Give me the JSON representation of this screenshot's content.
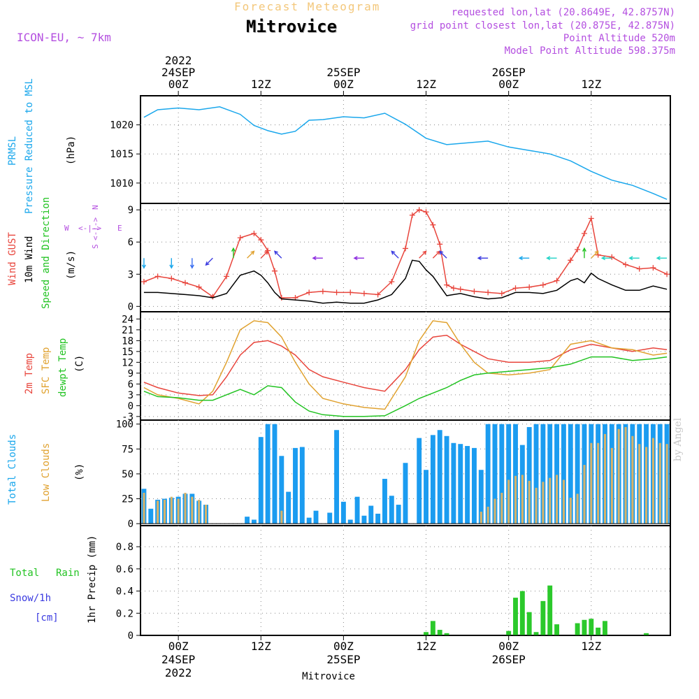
{
  "header": {
    "product": "Forecast Meteogram",
    "station": "Mitrovice",
    "model": "ICON-EU, ~ 7km",
    "requested": "requested lon,lat (20.8649E, 42.8757N)",
    "closest": "grid point closest lon,lat (20.875E, 42.875N)",
    "point_alt": "Point Altitude 520m",
    "model_alt": "Model Point Altitude 598.375m",
    "byline": "by Angel"
  },
  "time_axis": {
    "top": [
      {
        "lines": [
          "2022",
          "24SEP",
          "00Z"
        ],
        "t": 3
      },
      {
        "lines": [
          "12Z"
        ],
        "t": 15
      },
      {
        "lines": [
          "25SEP",
          "00Z"
        ],
        "t": 27
      },
      {
        "lines": [
          "12Z"
        ],
        "t": 39
      },
      {
        "lines": [
          "26SEP",
          "00Z"
        ],
        "t": 51
      },
      {
        "lines": [
          "12Z"
        ],
        "t": 63
      }
    ],
    "bottom": [
      {
        "lines": [
          "00Z",
          "24SEP",
          "2022"
        ],
        "t": 3
      },
      {
        "lines": [
          "12Z"
        ],
        "t": 15
      },
      {
        "lines": [
          "00Z",
          "25SEP"
        ],
        "t": 27
      },
      {
        "lines": [
          "12Z"
        ],
        "t": 39
      },
      {
        "lines": [
          "00Z",
          "26SEP"
        ],
        "t": 51
      },
      {
        "lines": [
          "12Z"
        ],
        "t": 63
      }
    ],
    "footer": "Mitrovice",
    "range_hours": [
      -2.5,
      74.5
    ]
  },
  "labels": {
    "pressure": {
      "left": "PRMSL",
      "mid": "Pressure Reduced to MSL",
      "unit": "(hPa)"
    },
    "wind": {
      "gust": "Wind GUST",
      "wind10": "10m Wind",
      "dir": "Speed and Direction",
      "unit": "(m/s)",
      "compass_n": "N",
      "compass_s": "S",
      "compass_w": "W",
      "compass_e": "E",
      "compass_mid": "<-|->"
    },
    "temp": {
      "t2m": "2m Temp",
      "sfc": "SFC Temp",
      "dew": "dewpt Temp",
      "unit": "(C)"
    },
    "cloud": {
      "total": "Total Clouds",
      "low": "Low Clouds",
      "unit": "(%)"
    },
    "precip": {
      "rain_a": "Total",
      "rain_b": "Rain",
      "snow": "Snow/1h",
      "snow_unit": "[cm]",
      "axis": "1hr Precip (mm)"
    }
  },
  "colors": {
    "pressure": "#1aa7ec",
    "gust": "#e8453c",
    "wind": "#000000",
    "t2m": "#e8453c",
    "sfc": "#e0a230",
    "dew": "#22c322",
    "total_cloud": "#1b9cf0",
    "low_cloud": "#d6b36a",
    "rain": "#2bc92b",
    "label_purple": "#b44fe0",
    "label_blue": "#3a3ae0"
  },
  "chart_data": [
    {
      "type": "line",
      "title": "",
      "ylabel": "Pressure Reduced to MSL (hPa)",
      "ylim": [
        1006.5,
        1025
      ],
      "yticks": [
        1010,
        1015,
        1020
      ],
      "x": [
        -2,
        0,
        3,
        6,
        9,
        12,
        14,
        16,
        18,
        20,
        22,
        24,
        27,
        30,
        33,
        36,
        39,
        42,
        45,
        48,
        51,
        54,
        57,
        60,
        63,
        66,
        69,
        72,
        74
      ],
      "series": [
        {
          "name": "PRMSL",
          "values": [
            1021.3,
            1022.6,
            1022.9,
            1022.6,
            1023.1,
            1021.8,
            1019.9,
            1019.0,
            1018.4,
            1018.9,
            1020.8,
            1020.9,
            1021.4,
            1021.2,
            1022.0,
            1020.1,
            1017.7,
            1016.6,
            1016.9,
            1017.2,
            1016.2,
            1015.6,
            1015.0,
            1013.8,
            1012.0,
            1010.5,
            1009.6,
            1008.2,
            1007.2
          ]
        }
      ]
    },
    {
      "type": "line",
      "title": "",
      "ylabel": "Wind GUST / 10m Wind (m/s)",
      "ylim": [
        -0.5,
        9.6
      ],
      "yticks": [
        0,
        3,
        6,
        9
      ],
      "x": [
        -2,
        0,
        2,
        4,
        6,
        8,
        10,
        12,
        14,
        15,
        16,
        17,
        18,
        20,
        22,
        24,
        26,
        28,
        30,
        32,
        34,
        36,
        37,
        38,
        39,
        40,
        41,
        42,
        43,
        44,
        46,
        48,
        50,
        52,
        54,
        56,
        58,
        60,
        61,
        62,
        63,
        64,
        66,
        68,
        70,
        72,
        74
      ],
      "series": [
        {
          "name": "Wind GUST",
          "values": [
            2.3,
            2.8,
            2.6,
            2.2,
            1.8,
            0.9,
            2.8,
            6.4,
            6.8,
            6.2,
            5.2,
            3.3,
            0.8,
            0.8,
            1.3,
            1.4,
            1.3,
            1.3,
            1.2,
            1.1,
            2.3,
            5.4,
            8.5,
            9.0,
            8.8,
            7.6,
            5.8,
            2.0,
            1.7,
            1.6,
            1.4,
            1.3,
            1.2,
            1.7,
            1.8,
            2.0,
            2.4,
            4.3,
            5.3,
            6.8,
            8.2,
            4.8,
            4.6,
            3.9,
            3.5,
            3.6,
            3.0
          ]
        },
        {
          "name": "10m Wind",
          "values": [
            1.3,
            1.3,
            1.2,
            1.1,
            1.0,
            0.8,
            1.2,
            2.9,
            3.3,
            2.9,
            2.2,
            1.3,
            0.7,
            0.6,
            0.5,
            0.3,
            0.4,
            0.3,
            0.3,
            0.6,
            1.1,
            2.6,
            4.3,
            4.2,
            3.4,
            2.8,
            1.9,
            1.0,
            1.1,
            1.2,
            0.9,
            0.7,
            0.8,
            1.3,
            1.3,
            1.2,
            1.5,
            2.4,
            2.6,
            2.2,
            3.1,
            2.6,
            2.0,
            1.5,
            1.5,
            1.9,
            1.6
          ]
        }
      ],
      "wind_barbs": [
        {
          "t": -2,
          "color": "#1aa7ec",
          "dir": "S"
        },
        {
          "t": 2,
          "color": "#1aa7ec",
          "dir": "S"
        },
        {
          "t": 5,
          "color": "#3a6ef0",
          "dir": "S"
        },
        {
          "t": 8,
          "color": "#3a3ae0",
          "dir": "SW"
        },
        {
          "t": 11,
          "color": "#22c322",
          "dir": "N"
        },
        {
          "t": 13,
          "color": "#e0a230",
          "dir": "NE"
        },
        {
          "t": 15,
          "color": "#e8453c",
          "dir": "NE"
        },
        {
          "t": 18,
          "color": "#3a3ae0",
          "dir": "NW"
        },
        {
          "t": 24,
          "color": "#8e2ee0",
          "dir": "W"
        },
        {
          "t": 30,
          "color": "#8e2ee0",
          "dir": "W"
        },
        {
          "t": 35,
          "color": "#3a3ae0",
          "dir": "NW"
        },
        {
          "t": 38,
          "color": "#e8453c",
          "dir": "NE"
        },
        {
          "t": 40,
          "color": "#e8453c",
          "dir": "NE"
        },
        {
          "t": 42,
          "color": "#3a3ae0",
          "dir": "NW"
        },
        {
          "t": 48,
          "color": "#3a3ae0",
          "dir": "W"
        },
        {
          "t": 54,
          "color": "#1aa7ec",
          "dir": "W"
        },
        {
          "t": 58,
          "color": "#22d3c6",
          "dir": "W"
        },
        {
          "t": 62,
          "color": "#22c322",
          "dir": "N"
        },
        {
          "t": 63,
          "color": "#e0a230",
          "dir": "NE"
        },
        {
          "t": 66,
          "color": "#22d3c6",
          "dir": "W"
        },
        {
          "t": 70,
          "color": "#22d3c6",
          "dir": "W"
        },
        {
          "t": 74,
          "color": "#22d3c6",
          "dir": "W"
        }
      ]
    },
    {
      "type": "line",
      "title": "",
      "ylabel": "2m Temp / SFC Temp / dewpt Temp (C)",
      "ylim": [
        -4,
        26
      ],
      "yticks": [
        -3,
        0,
        3,
        6,
        9,
        12,
        15,
        18,
        21,
        24
      ],
      "x": [
        -2,
        0,
        3,
        6,
        8,
        10,
        12,
        14,
        16,
        18,
        20,
        22,
        24,
        27,
        30,
        33,
        36,
        38,
        40,
        42,
        44,
        46,
        48,
        51,
        54,
        57,
        60,
        63,
        66,
        69,
        72,
        74
      ],
      "series": [
        {
          "name": "2m Temp",
          "values": [
            6.5,
            5.0,
            3.5,
            2.8,
            3.0,
            8.0,
            14.0,
            17.5,
            18.0,
            16.5,
            14.0,
            10.0,
            8.0,
            6.5,
            5.0,
            4.0,
            10.0,
            15.5,
            19.0,
            19.5,
            17.0,
            15.0,
            13.0,
            12.0,
            12.0,
            12.5,
            15.5,
            17.0,
            16.0,
            15.0,
            16.0,
            15.5
          ]
        },
        {
          "name": "SFC Temp",
          "values": [
            5.0,
            3.0,
            2.0,
            0.5,
            4.0,
            12.0,
            21.0,
            23.5,
            23.0,
            19.0,
            12.0,
            6.0,
            2.0,
            0.5,
            -0.5,
            -1.0,
            8.0,
            18.0,
            23.5,
            23.0,
            17.0,
            12.0,
            9.0,
            8.5,
            9.0,
            10.0,
            17.0,
            18.0,
            16.0,
            15.5,
            14.0,
            14.5
          ]
        },
        {
          "name": "dewpt Temp",
          "values": [
            4.0,
            2.5,
            2.2,
            1.5,
            1.5,
            3.0,
            4.5,
            3.0,
            5.5,
            5.0,
            1.0,
            -1.5,
            -2.5,
            -3.0,
            -3.0,
            -2.8,
            0.0,
            2.0,
            3.5,
            5.0,
            7.0,
            8.5,
            9.0,
            9.5,
            10.0,
            10.5,
            11.5,
            13.5,
            13.5,
            12.5,
            13.0,
            13.5
          ]
        }
      ]
    },
    {
      "type": "bar",
      "title": "",
      "ylabel": "Total Clouds / Low Clouds (%)",
      "ylim": [
        -2,
        104
      ],
      "yticks": [
        0,
        25,
        50,
        75,
        100
      ],
      "x_start": -2,
      "x_step": 1,
      "series": [
        {
          "name": "Total Clouds",
          "values": [
            35,
            15,
            24,
            25,
            26,
            27,
            30,
            30,
            23,
            19,
            0,
            0,
            0,
            0,
            0,
            7,
            4,
            87,
            100,
            100,
            68,
            32,
            76,
            77,
            6,
            13,
            0,
            11,
            94,
            22,
            4,
            27,
            8,
            18,
            10,
            45,
            28,
            19,
            61,
            0,
            86,
            54,
            89,
            94,
            88,
            81,
            80,
            78,
            76,
            54,
            100,
            100,
            100,
            100,
            100,
            79,
            97,
            100,
            100,
            100,
            100,
            100,
            100,
            100,
            100,
            100,
            100,
            100,
            100,
            100,
            100,
            100,
            100,
            100,
            100,
            100,
            100
          ]
        },
        {
          "name": "Low Clouds",
          "values": [
            31,
            0,
            23,
            24,
            27,
            25,
            31,
            27,
            24,
            19,
            0,
            0,
            0,
            0,
            0,
            0,
            0,
            0,
            0,
            0,
            13,
            0,
            0,
            0,
            0,
            0,
            0,
            0,
            0,
            0,
            0,
            0,
            0,
            0,
            0,
            0,
            0,
            0,
            0,
            0,
            0,
            0,
            0,
            0,
            0,
            0,
            0,
            0,
            0,
            12,
            17,
            25,
            31,
            44,
            48,
            49,
            43,
            36,
            42,
            46,
            49,
            44,
            26,
            30,
            59,
            81,
            81,
            90,
            76,
            95,
            97,
            88,
            80,
            77,
            86,
            81,
            80
          ]
        }
      ]
    },
    {
      "type": "bar",
      "title": "",
      "ylabel": "1hr Precip (mm)",
      "ylim": [
        0,
        0.99
      ],
      "yticks": [
        0,
        0.2,
        0.4,
        0.6,
        0.8
      ],
      "x_start": -2,
      "x_step": 1,
      "series": [
        {
          "name": "Total Rain",
          "values": [
            0,
            0,
            0,
            0,
            0,
            0,
            0,
            0,
            0,
            0,
            0,
            0,
            0,
            0,
            0,
            0,
            0,
            0,
            0,
            0,
            0,
            0,
            0,
            0,
            0,
            0,
            0,
            0,
            0,
            0,
            0,
            0,
            0,
            0,
            0,
            0,
            0,
            0,
            0,
            0,
            0,
            0.03,
            0.13,
            0.05,
            0.02,
            0,
            0,
            0,
            0,
            0,
            0,
            0,
            0,
            0.04,
            0.34,
            0.4,
            0.21,
            0.03,
            0.31,
            0.45,
            0.1,
            0,
            0,
            0.11,
            0.14,
            0.15,
            0.07,
            0.13,
            0,
            0,
            0,
            0,
            0,
            0.02,
            0
          ]
        }
      ]
    }
  ]
}
